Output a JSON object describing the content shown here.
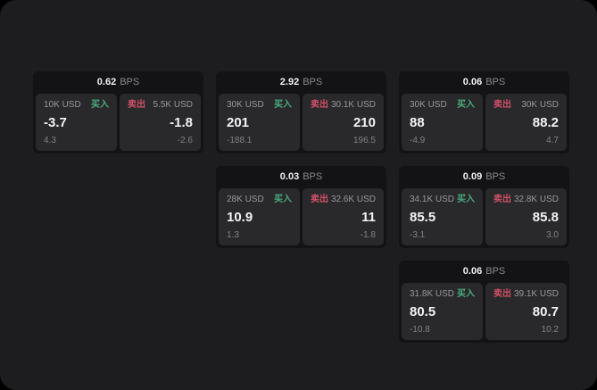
{
  "labels": {
    "bps_unit": "BPS",
    "buy": "买入",
    "sell": "卖出"
  },
  "colors": {
    "screen_background": "#1d1d1f",
    "card_background": "#131315",
    "panel_background": "#29292b",
    "buy_green": "#4aab7f",
    "sell_red": "#ce5068",
    "primary_text": "#f3f3f5",
    "muted_text": "#98989c"
  },
  "cards": [
    {
      "bps": "0.62",
      "buy": {
        "size": "10K USD",
        "price": "-3.7",
        "delta": "4.3"
      },
      "sell": {
        "size": "5.5K USD",
        "price": "-1.8",
        "delta": "-2.6"
      }
    },
    {
      "bps": "2.92",
      "buy": {
        "size": "30K USD",
        "price": "201",
        "delta": "-188.1"
      },
      "sell": {
        "size": "30.1K USD",
        "price": "210",
        "delta": "196.5"
      }
    },
    {
      "bps": "0.06",
      "buy": {
        "size": "30K USD",
        "price": "88",
        "delta": "-4.9"
      },
      "sell": {
        "size": "30K USD",
        "price": "88.2",
        "delta": "4.7"
      }
    },
    {
      "bps": "0.03",
      "buy": {
        "size": "28K USD",
        "price": "10.9",
        "delta": "1.3"
      },
      "sell": {
        "size": "32.6K USD",
        "price": "11",
        "delta": "-1.8"
      }
    },
    {
      "bps": "0.09",
      "buy": {
        "size": "34.1K USD",
        "price": "85.5",
        "delta": "-3.1"
      },
      "sell": {
        "size": "32.8K USD",
        "price": "85.8",
        "delta": "3.0"
      }
    },
    {
      "bps": "0.06",
      "buy": {
        "size": "31.8K USD",
        "price": "80.5",
        "delta": "-10.8"
      },
      "sell": {
        "size": "39.1K USD",
        "price": "80.7",
        "delta": "10.2"
      }
    }
  ]
}
